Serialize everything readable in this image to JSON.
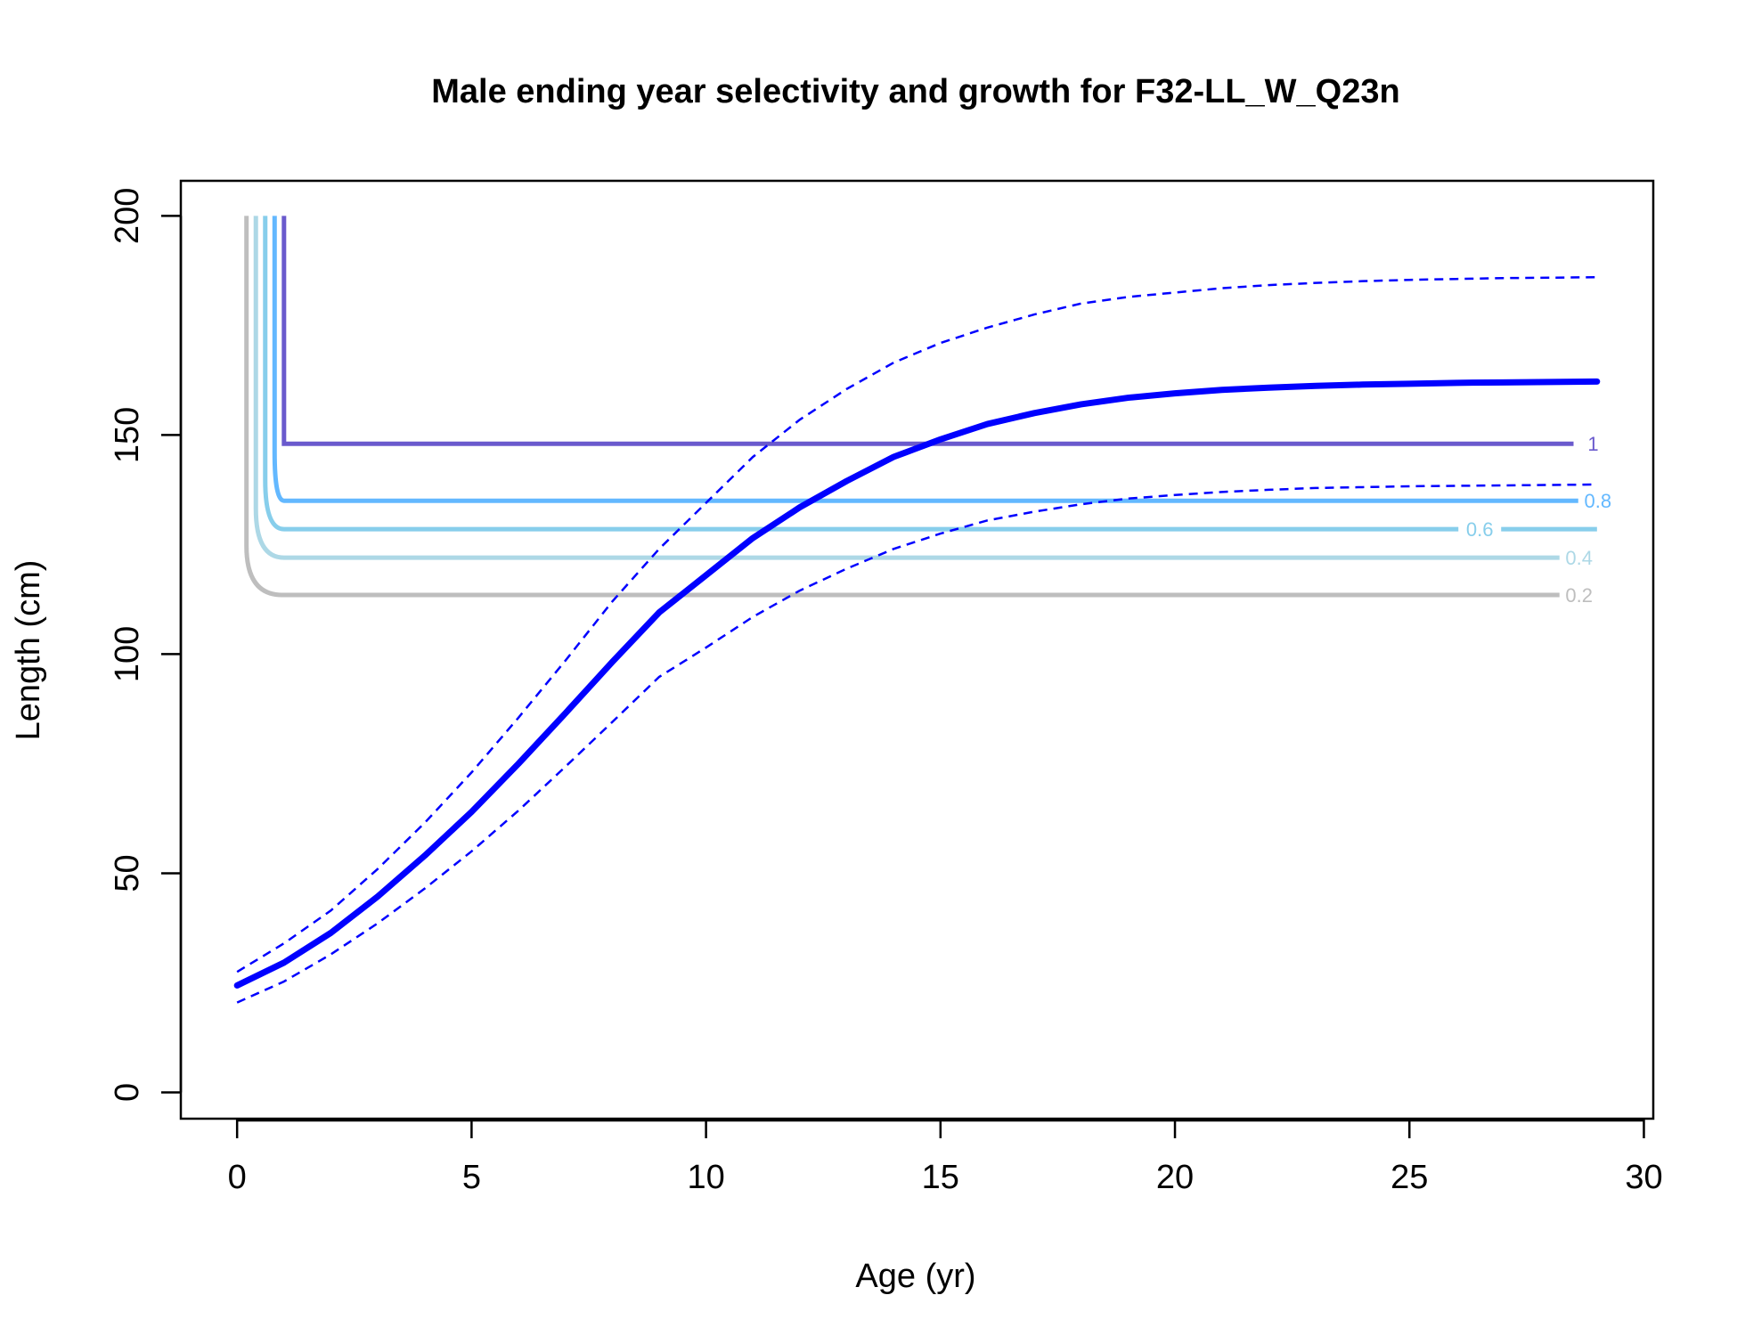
{
  "chart_data": {
    "type": "line",
    "title": "Male ending year selectivity and growth for F32-LL_W_Q23n",
    "xlabel": "Age (yr)",
    "ylabel": "Length (cm)",
    "xlim": [
      -1.2,
      30.2
    ],
    "ylim": [
      -6,
      208
    ],
    "x_ticks": [
      "0",
      "5",
      "10",
      "15",
      "20",
      "25",
      "30"
    ],
    "y_ticks": [
      "0",
      "50",
      "100",
      "150",
      "200"
    ],
    "x_tick_values": [
      0,
      5,
      10,
      15,
      20,
      25,
      30
    ],
    "y_tick_values": [
      0,
      50,
      100,
      150,
      200
    ],
    "grid": false,
    "growth": {
      "color": "#0000FF",
      "ages": [
        0,
        1,
        2,
        3,
        4,
        5,
        6,
        7,
        8,
        9,
        10,
        11,
        12,
        13,
        14,
        15,
        16,
        17,
        18,
        19,
        20,
        21,
        22,
        23,
        24,
        25,
        26,
        27,
        28,
        29
      ],
      "mean": [
        24.4,
        29.6,
        36.4,
        44.7,
        54.0,
        64.0,
        75.0,
        86.5,
        98.2,
        109.5,
        118.0,
        126.5,
        133.5,
        139.5,
        145.0,
        149.0,
        152.5,
        155.0,
        157.0,
        158.5,
        159.5,
        160.3,
        160.8,
        161.2,
        161.5,
        161.7,
        161.9,
        162.0,
        162.1,
        162.2
      ],
      "upper": [
        27.5,
        34.0,
        41.5,
        51.0,
        61.5,
        73.0,
        85.5,
        98.5,
        112.0,
        124.0,
        134.5,
        145.0,
        153.5,
        160.5,
        166.5,
        171.0,
        174.5,
        177.5,
        180.0,
        181.5,
        182.5,
        183.5,
        184.2,
        184.7,
        185.1,
        185.4,
        185.6,
        185.8,
        185.9,
        186.0
      ],
      "lower": [
        20.5,
        25.3,
        31.5,
        38.6,
        46.5,
        55.0,
        64.3,
        74.3,
        84.5,
        94.8,
        101.5,
        108.5,
        114.5,
        119.5,
        124.0,
        127.5,
        130.5,
        132.5,
        134.2,
        135.5,
        136.3,
        137.0,
        137.5,
        137.9,
        138.1,
        138.3,
        138.4,
        138.5,
        138.6,
        138.7
      ]
    },
    "contours": [
      {
        "label": "1",
        "level": 1.0,
        "color": "#6A5ACD",
        "x_vert": 1.0,
        "y_plateau": 148.0,
        "x_end": 28.5,
        "label_side": "end"
      },
      {
        "label": "0.8",
        "level": 0.8,
        "color": "#63B8FF",
        "x_vert": 0.8,
        "y_plateau": 135.0,
        "x_end": 28.6,
        "label_side": "end"
      },
      {
        "label": "0.6",
        "level": 0.6,
        "color": "#87CEEB",
        "x_vert": 0.6,
        "y_plateau": 128.5,
        "x_end": 29.0,
        "label_side": "inline"
      },
      {
        "label": "0.4",
        "level": 0.4,
        "color": "#ADD8E6",
        "x_vert": 0.4,
        "y_plateau": 122.0,
        "x_end": 28.2,
        "label_side": "end"
      },
      {
        "label": "0.2",
        "level": 0.2,
        "color": "#BEBEBE",
        "x_vert": 0.2,
        "y_plateau": 113.5,
        "x_end": 28.2,
        "label_side": "end"
      }
    ],
    "contour_top": 200
  }
}
